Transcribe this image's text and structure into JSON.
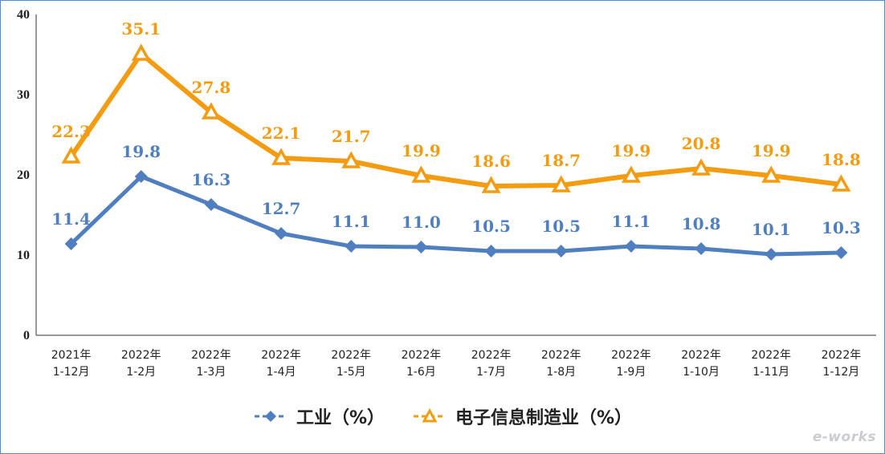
{
  "chart_data": {
    "type": "line",
    "categories": [
      [
        "2021年",
        "1-12月"
      ],
      [
        "2022年",
        "1-2月"
      ],
      [
        "2022年",
        "1-3月"
      ],
      [
        "2022年",
        "1-4月"
      ],
      [
        "2022年",
        "1-5月"
      ],
      [
        "2022年",
        "1-6月"
      ],
      [
        "2022年",
        "1-7月"
      ],
      [
        "2022年",
        "1-8月"
      ],
      [
        "2022年",
        "1-9月"
      ],
      [
        "2022年",
        "1-10月"
      ],
      [
        "2022年",
        "1-11月"
      ],
      [
        "2022年",
        "1-12月"
      ]
    ],
    "series": [
      {
        "name": "工业（%）",
        "color": "#4f7fbf",
        "marker": "diamond",
        "values": [
          11.4,
          19.8,
          16.3,
          12.7,
          11.1,
          11.0,
          10.5,
          10.5,
          11.1,
          10.8,
          10.1,
          10.3
        ],
        "labels": [
          "11.4",
          "19.8",
          "16.3",
          "12.7",
          "11.1",
          "11.0",
          "10.5",
          "10.5",
          "11.1",
          "10.8",
          "10.1",
          "10.3"
        ]
      },
      {
        "name": "电子信息制造业（%）",
        "color": "#f39c12",
        "marker": "triangle",
        "values": [
          22.3,
          35.1,
          27.8,
          22.1,
          21.7,
          19.9,
          18.6,
          18.7,
          19.9,
          20.8,
          19.9,
          18.8
        ],
        "labels": [
          "22.3",
          "35.1",
          "27.8",
          "22.1",
          "21.7",
          "19.9",
          "18.6",
          "18.7",
          "19.9",
          "20.8",
          "19.9",
          "18.8"
        ]
      }
    ],
    "yticks": [
      "0",
      "10",
      "20",
      "30",
      "40"
    ],
    "ylim": [
      0,
      40
    ],
    "grid": false,
    "legend_position": "bottom"
  },
  "legend": {
    "industry_label": "工业（%）",
    "electronics_label": "电子信息制造业（%）"
  },
  "watermark": {
    "text": "e-works"
  }
}
